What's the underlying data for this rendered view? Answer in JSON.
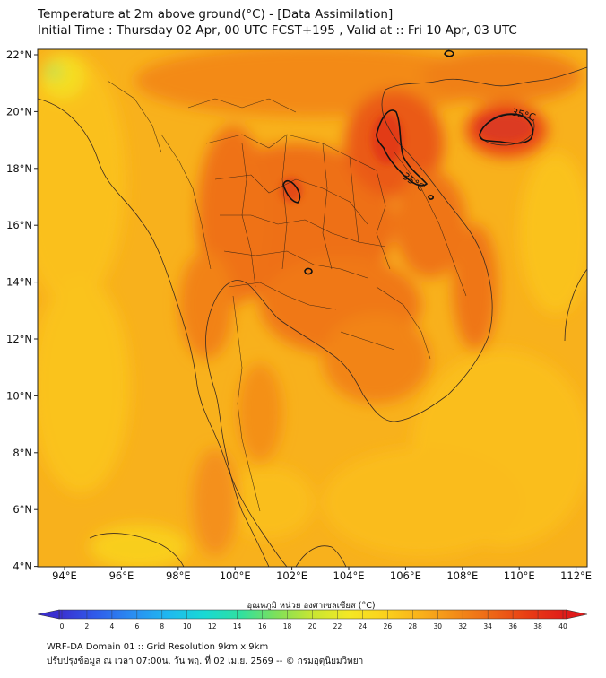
{
  "title": {
    "line1": "Temperature at 2m above ground(°C) - [Data Assimilation]",
    "line2": "Initial Time : Thursday 02 Apr, 00 UTC FCST+195 , Valid at :: Fri 10 Apr, 03 UTC"
  },
  "axes": {
    "x_ticks": [
      "94°E",
      "96°E",
      "98°E",
      "100°E",
      "102°E",
      "104°E",
      "106°E",
      "108°E",
      "110°E",
      "112°E"
    ],
    "y_ticks": [
      "22°N",
      "20°N",
      "18°N",
      "16°N",
      "14°N",
      "12°N",
      "10°N",
      "8°N",
      "6°N",
      "4°N"
    ]
  },
  "contour_labels": [
    "35°C",
    "35°C"
  ],
  "colorbar": {
    "title": "อุณหภูมิ หน่วย องศาเซลเซียส (°C)",
    "ticks": [
      "0",
      "2",
      "4",
      "6",
      "8",
      "10",
      "12",
      "14",
      "16",
      "18",
      "20",
      "22",
      "24",
      "26",
      "28",
      "30",
      "32",
      "34",
      "36",
      "38",
      "40"
    ],
    "colors": [
      "#3a2fd0",
      "#2f5bea",
      "#2a8cf2",
      "#1fb8f0",
      "#19d9d4",
      "#2fe0a0",
      "#7fe05a",
      "#c9e632",
      "#f4e824",
      "#fbd11c",
      "#f9b01a",
      "#f38a18",
      "#ee6416",
      "#e83a14",
      "#e01a1a"
    ]
  },
  "footer": {
    "line1": "WRF-DA Domain 01 :: Grid Resolution 9km x 9km",
    "line2": "ปรับปรุงข้อมูล ณ เวลา 07:00น. วัน พฤ. ที่ 02 เม.ย. 2569 -- © กรมอุตุนิยมวิทยา"
  }
}
